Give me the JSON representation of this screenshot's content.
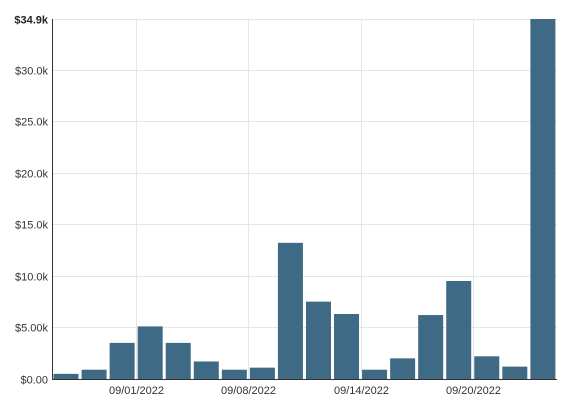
{
  "chart_data": {
    "type": "bar",
    "title": "",
    "xlabel": "",
    "ylabel": "",
    "ylim": [
      0,
      34900
    ],
    "y_ticks": [
      {
        "value": 0,
        "label": "$0.00"
      },
      {
        "value": 5000,
        "label": "$5.00k"
      },
      {
        "value": 10000,
        "label": "$10.0k"
      },
      {
        "value": 15000,
        "label": "$15.0k"
      },
      {
        "value": 20000,
        "label": "$20.0k"
      },
      {
        "value": 25000,
        "label": "$25.0k"
      },
      {
        "value": 30000,
        "label": "$30.0k"
      },
      {
        "value": 34900,
        "label": "$34.9k"
      }
    ],
    "x_ticks": [
      {
        "after_bar": 3,
        "label": "09/01/2022"
      },
      {
        "after_bar": 7,
        "label": "09/08/2022"
      },
      {
        "after_bar": 11,
        "label": "09/14/2022"
      },
      {
        "after_bar": 15,
        "label": "09/20/2022"
      }
    ],
    "values": [
      500,
      900,
      3500,
      5100,
      3500,
      1700,
      900,
      1100,
      13200,
      7500,
      6300,
      900,
      2000,
      6200,
      9500,
      2200,
      1200,
      34900
    ],
    "bar_color": "#3f6a86",
    "grid": true
  }
}
